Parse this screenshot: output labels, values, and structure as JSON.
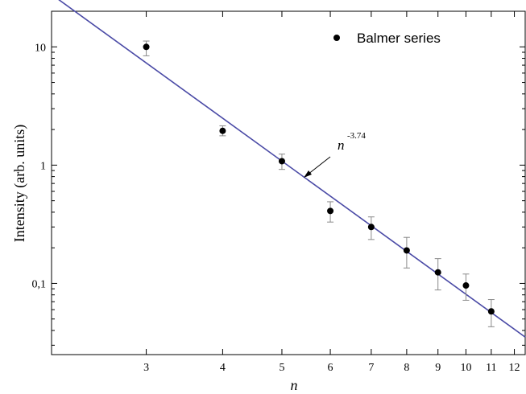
{
  "chart_data": {
    "type": "scatter",
    "xlabel": "n",
    "ylabel": "Intensity (arb. units)",
    "x_scale": "log",
    "y_scale": "log",
    "xlim": [
      2.1,
      12.5
    ],
    "ylim": [
      0.025,
      20
    ],
    "x_ticks": [
      3,
      4,
      5,
      6,
      7,
      8,
      9,
      10,
      11,
      12
    ],
    "x_tick_labels": [
      "3",
      "4",
      "5",
      "6",
      "7",
      "8",
      "9",
      "10",
      "11",
      "12"
    ],
    "y_ticks": [
      0.1,
      1,
      10
    ],
    "y_tick_labels": [
      "0,1",
      "1",
      "10"
    ],
    "grid": false,
    "legend": {
      "position": "top-right",
      "entries": [
        "Balmer series"
      ]
    },
    "series": [
      {
        "name": "Balmer series",
        "type": "scatter",
        "color": "#000000",
        "points": [
          {
            "x": 3,
            "y": 10.0,
            "err_low": 8.4,
            "err_high": 11.2
          },
          {
            "x": 4,
            "y": 1.95,
            "err_low": 1.77,
            "err_high": 2.15
          },
          {
            "x": 5,
            "y": 1.08,
            "err_low": 0.92,
            "err_high": 1.24
          },
          {
            "x": 6,
            "y": 0.41,
            "err_low": 0.33,
            "err_high": 0.49
          },
          {
            "x": 7,
            "y": 0.3,
            "err_low": 0.235,
            "err_high": 0.365
          },
          {
            "x": 8,
            "y": 0.19,
            "err_low": 0.135,
            "err_high": 0.245
          },
          {
            "x": 9,
            "y": 0.124,
            "err_low": 0.088,
            "err_high": 0.162
          },
          {
            "x": 10,
            "y": 0.096,
            "err_low": 0.072,
            "err_high": 0.12
          },
          {
            "x": 11,
            "y": 0.058,
            "err_low": 0.043,
            "err_high": 0.073
          }
        ]
      }
    ],
    "fit": {
      "type": "power_law",
      "exponent": -3.74,
      "prefactor": 445,
      "color": "#4a4aa6",
      "label": "n",
      "label_exponent": "-3.74"
    }
  }
}
